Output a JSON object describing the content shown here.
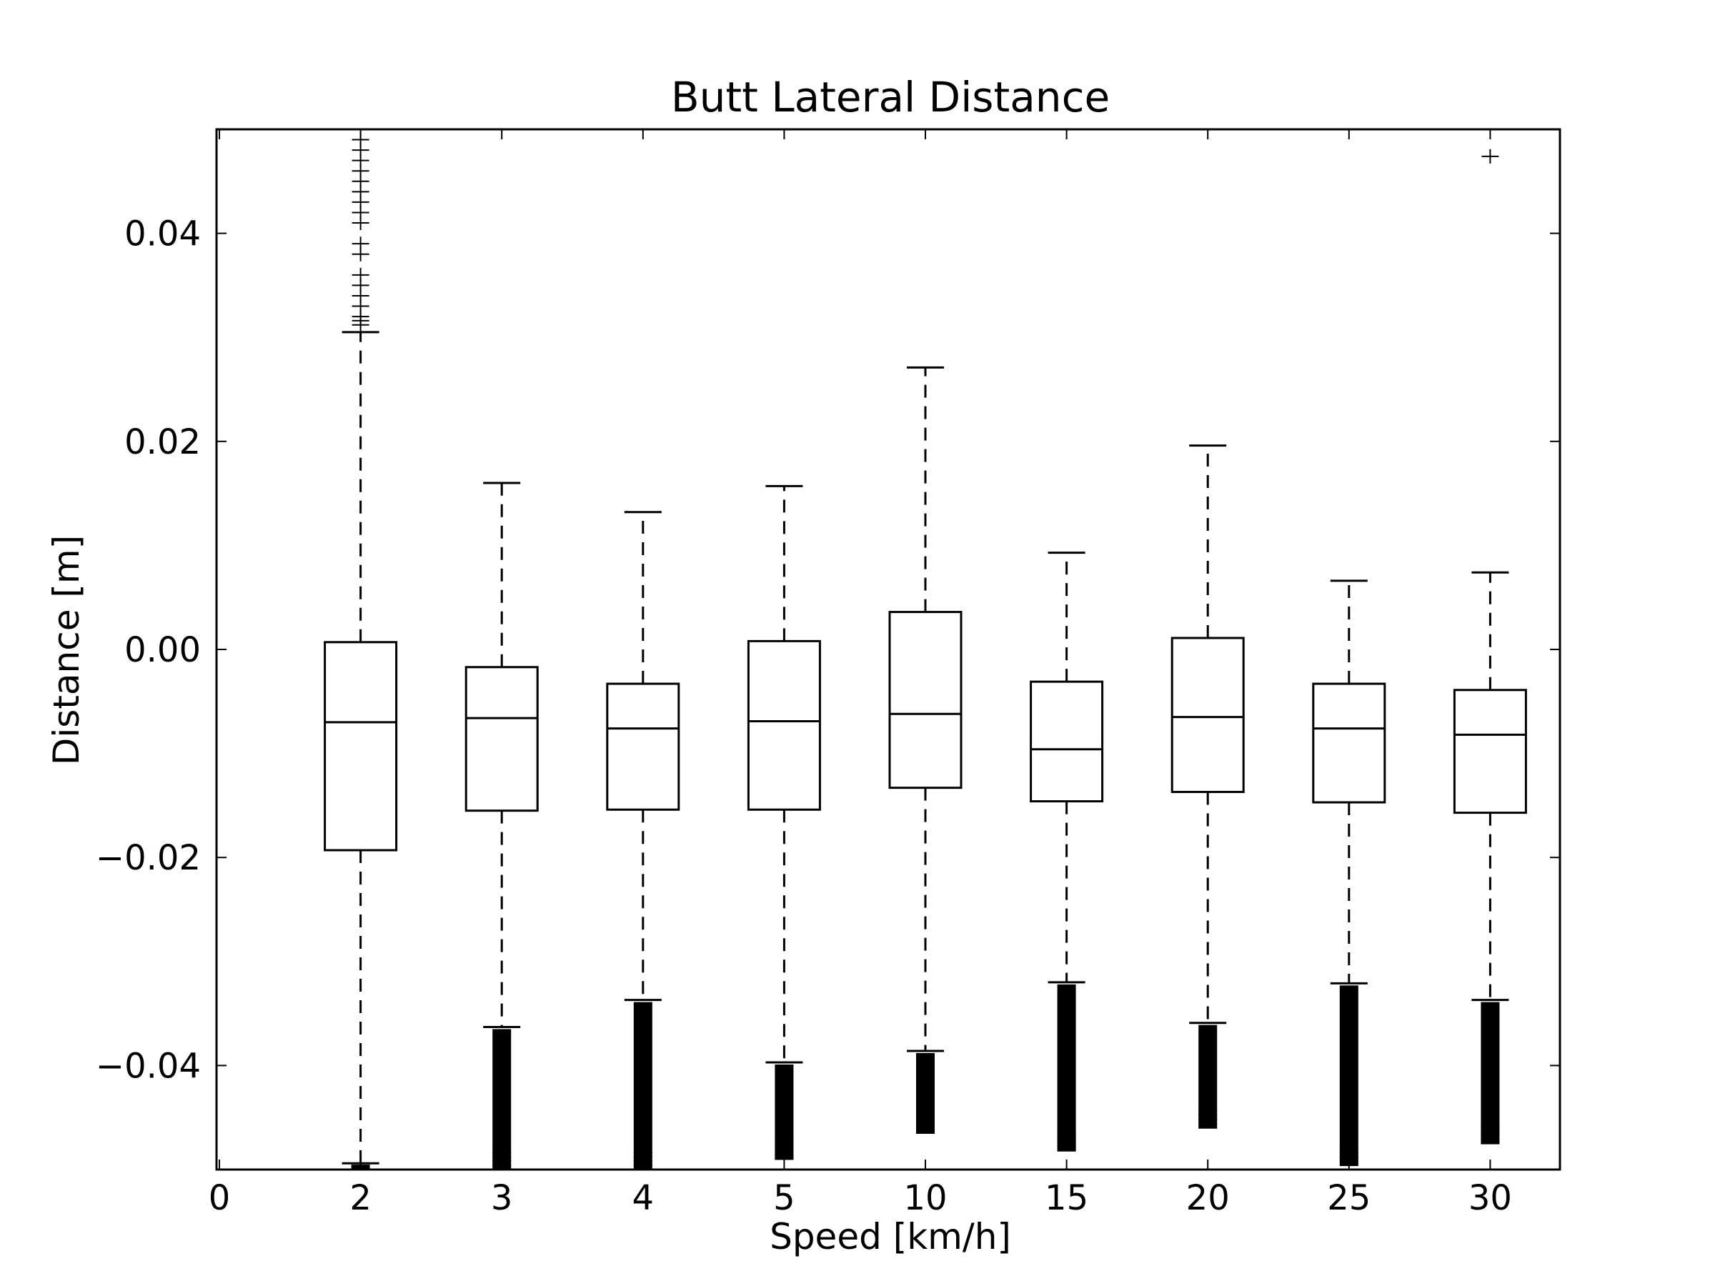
{
  "chart_data": {
    "type": "box",
    "title": "Butt Lateral Distance",
    "xlabel": "Speed [km/h]",
    "ylabel": "Distance [m]",
    "ylim": [
      -0.05,
      0.05
    ],
    "yticks": [
      "0.04",
      "0.02",
      "0.00",
      "−0.02",
      "−0.04"
    ],
    "ytick_values": [
      0.04,
      0.02,
      0.0,
      -0.02,
      -0.04
    ],
    "xtick_labels": [
      "0",
      "2",
      "3",
      "4",
      "5",
      "10",
      "15",
      "20",
      "25",
      "30"
    ],
    "grid": false,
    "series": [
      {
        "category": "2",
        "whisker_low": -0.0494,
        "q1": -0.0193,
        "median": -0.007,
        "q3": 0.0007,
        "whisker_high": 0.0305,
        "outliers_high": [
          0.0312,
          0.0316,
          0.032,
          0.033,
          0.034,
          0.035,
          0.036,
          0.038,
          0.039,
          0.041,
          0.042,
          0.043,
          0.044,
          0.045,
          0.046,
          0.047,
          0.048,
          0.049
        ],
        "outliers_low": [
          -0.0498
        ]
      },
      {
        "category": "3",
        "whisker_low": -0.0363,
        "q1": -0.0155,
        "median": -0.0066,
        "q3": -0.0017,
        "whisker_high": 0.016,
        "outliers_low_range": [
          -0.0365,
          -0.05
        ]
      },
      {
        "category": "4",
        "whisker_low": -0.0337,
        "q1": -0.0154,
        "median": -0.0076,
        "q3": -0.0033,
        "whisker_high": 0.0132,
        "outliers_low_range": [
          -0.0339,
          -0.05
        ]
      },
      {
        "category": "5",
        "whisker_low": -0.0397,
        "q1": -0.0154,
        "median": -0.0069,
        "q3": 0.0008,
        "whisker_high": 0.0157,
        "outliers_low_range": [
          -0.0399,
          -0.049
        ]
      },
      {
        "category": "10",
        "whisker_low": -0.0386,
        "q1": -0.0133,
        "median": -0.0062,
        "q3": 0.0036,
        "whisker_high": 0.0271,
        "outliers_low_range": [
          -0.0388,
          -0.0465
        ]
      },
      {
        "category": "15",
        "whisker_low": -0.032,
        "q1": -0.0146,
        "median": -0.0096,
        "q3": -0.0031,
        "whisker_high": 0.0093,
        "outliers_low_range": [
          -0.0322,
          -0.0482
        ]
      },
      {
        "category": "20",
        "whisker_low": -0.0359,
        "q1": -0.0137,
        "median": -0.0065,
        "q3": 0.0011,
        "whisker_high": 0.0196,
        "outliers_low_range": [
          -0.0361,
          -0.046
        ]
      },
      {
        "category": "25",
        "whisker_low": -0.0321,
        "q1": -0.0147,
        "median": -0.0076,
        "q3": -0.0033,
        "whisker_high": 0.0066,
        "outliers_low_range": [
          -0.0323,
          -0.0496
        ]
      },
      {
        "category": "30",
        "whisker_low": -0.0337,
        "q1": -0.0157,
        "median": -0.0082,
        "q3": -0.0039,
        "whisker_high": 0.0074,
        "outliers_low_range": [
          -0.0339,
          -0.0475
        ],
        "outliers_high": [
          0.0474
        ]
      }
    ]
  }
}
